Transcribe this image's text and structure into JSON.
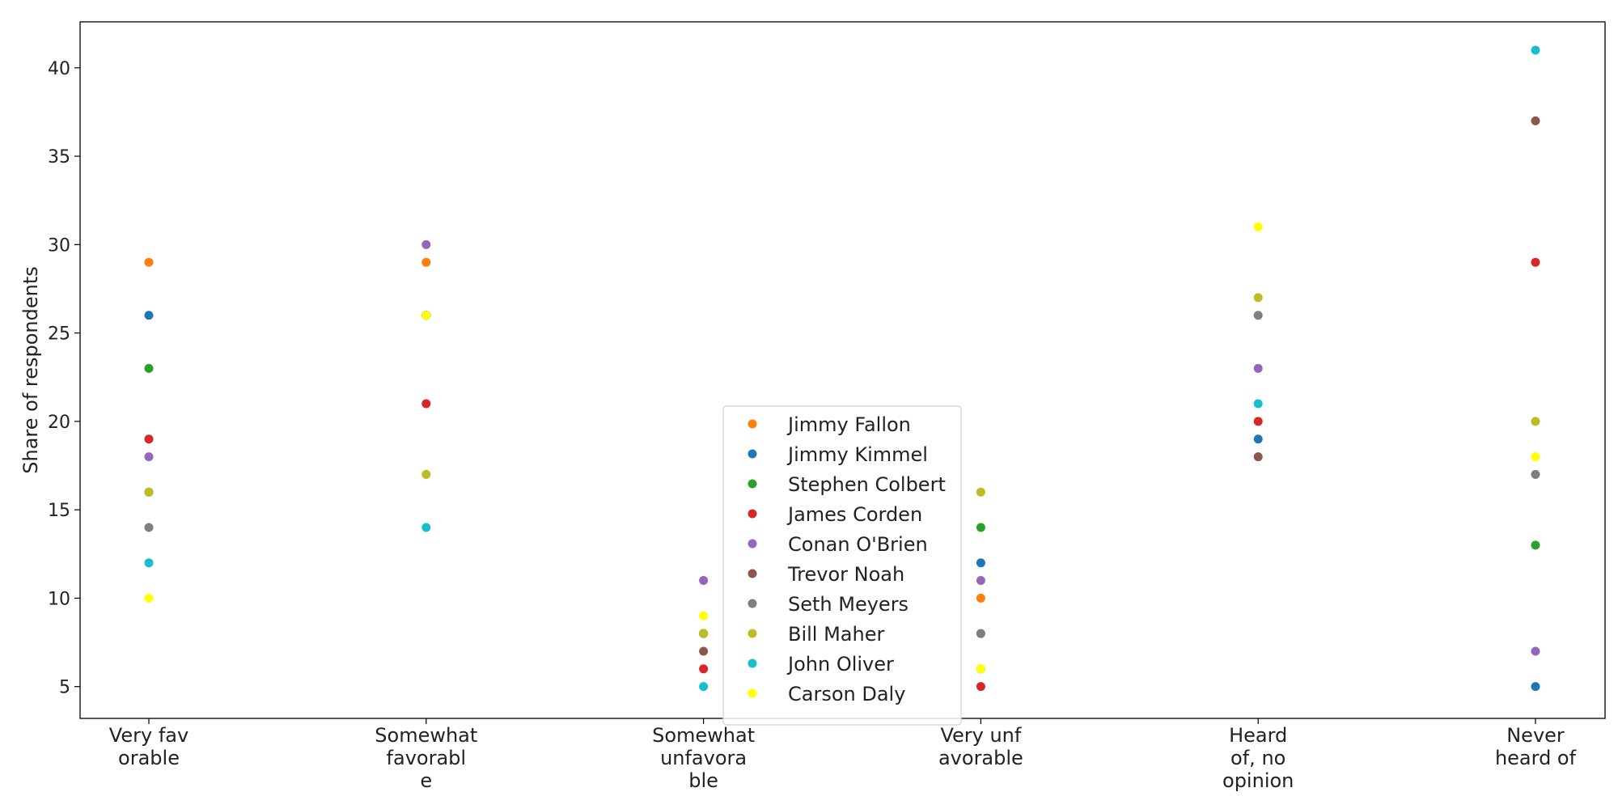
{
  "chart_data": {
    "type": "scatter",
    "ylabel": "Share of respondents",
    "categories": [
      [
        "Very fav",
        "orable"
      ],
      [
        "Somewhat",
        "favorabl",
        "e"
      ],
      [
        "Somewhat",
        "unfavora",
        "ble"
      ],
      [
        "Very unf",
        "avorable"
      ],
      [
        "Heard",
        "of, no",
        "opinion"
      ],
      [
        "Never",
        "heard of"
      ]
    ],
    "ylim": [
      3.2,
      42.6
    ],
    "yticks": [
      5,
      10,
      15,
      20,
      25,
      30,
      35,
      40
    ],
    "grid": false,
    "legend_position": "center",
    "series": [
      {
        "name": "Jimmy Fallon",
        "color": "#ff7f0e",
        "values": [
          29,
          29,
          8,
          10,
          null,
          null
        ]
      },
      {
        "name": "Jimmy Kimmel",
        "color": "#1f77b4",
        "values": [
          26,
          26,
          8,
          12,
          19,
          5
        ]
      },
      {
        "name": "Stephen Colbert",
        "color": "#2ca02c",
        "values": [
          23,
          26,
          8,
          14,
          null,
          13
        ]
      },
      {
        "name": "James Corden",
        "color": "#d62728",
        "values": [
          19,
          21,
          6,
          5,
          20,
          29
        ]
      },
      {
        "name": "Conan O'Brien",
        "color": "#9467bd",
        "values": [
          18,
          30,
          11,
          11,
          23,
          7
        ]
      },
      {
        "name": "Trevor Noah",
        "color": "#8c564b",
        "values": [
          16,
          26,
          7,
          8,
          18,
          37
        ]
      },
      {
        "name": "Seth Meyers",
        "color": "#7f7f7f",
        "values": [
          14,
          26,
          8,
          8,
          26,
          17
        ]
      },
      {
        "name": "Bill Maher",
        "color": "#bcbd22",
        "values": [
          16,
          17,
          8,
          16,
          27,
          20
        ]
      },
      {
        "name": "John Oliver",
        "color": "#17becf",
        "values": [
          12,
          14,
          5,
          6,
          21,
          41
        ]
      },
      {
        "name": "Carson Daly",
        "color": "#ffff00",
        "values": [
          10,
          26,
          9,
          6,
          31,
          18
        ]
      }
    ]
  }
}
